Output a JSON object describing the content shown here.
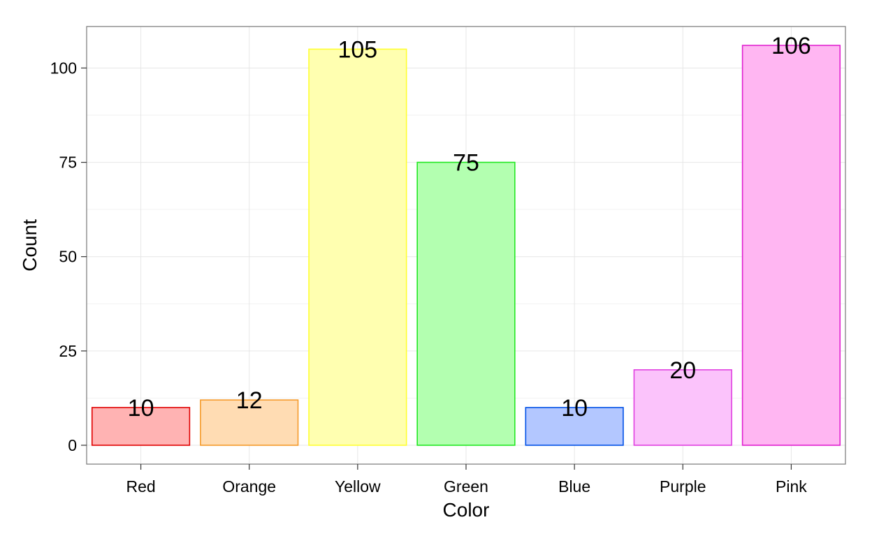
{
  "chart_data": {
    "type": "bar",
    "title": "",
    "xlabel": "Color",
    "ylabel": "Count",
    "categories": [
      "Red",
      "Orange",
      "Yellow",
      "Green",
      "Blue",
      "Purple",
      "Pink"
    ],
    "values": [
      10,
      12,
      105,
      75,
      10,
      20,
      106
    ],
    "ylim": [
      -5,
      111
    ],
    "yticks": [
      0,
      25,
      50,
      75,
      100
    ],
    "grid": true,
    "legend": "none",
    "fill_colors": [
      "#ffb3b3",
      "#ffdcb3",
      "#ffffb0",
      "#b3ffb0",
      "#b3c7ff",
      "#fbc3fb",
      "#ffb6f2"
    ],
    "outline_colors": [
      "#e00000",
      "#f59a2a",
      "#ffff33",
      "#22e822",
      "#0050e6",
      "#e040e0",
      "#e020d0"
    ],
    "panel_border_color": "#777777",
    "grid_color": "#e6e6e6"
  }
}
